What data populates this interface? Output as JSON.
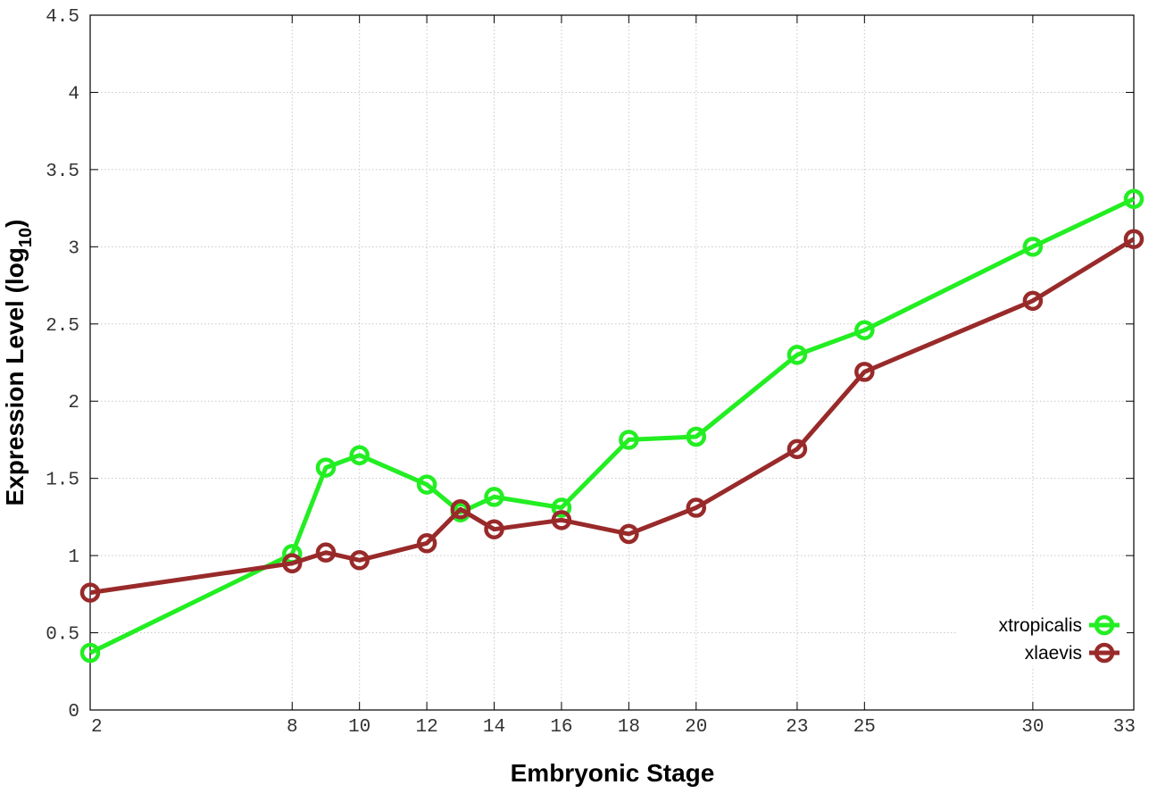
{
  "chart_data": {
    "type": "line",
    "title": "",
    "xlabel": "Embryonic Stage",
    "ylabel_main": "Expression Level (log",
    "ylabel_sub": "10",
    "ylabel_close": ")",
    "x_ticks": [
      2,
      8,
      10,
      12,
      14,
      16,
      18,
      20,
      23,
      25,
      30,
      33
    ],
    "y_ticks": [
      "0",
      "0.5",
      "1",
      "1.5",
      "2",
      "2.5",
      "3",
      "3.5",
      "4",
      "4.5"
    ],
    "xlim": [
      2,
      33
    ],
    "ylim": [
      0,
      4.5
    ],
    "grid": true,
    "legend_position": "bottom-right",
    "series": [
      {
        "name": "xtropicalis",
        "color": "#22ee22",
        "points": [
          [
            2,
            0.37
          ],
          [
            8,
            1.01
          ],
          [
            9,
            1.57
          ],
          [
            10,
            1.65
          ],
          [
            12,
            1.46
          ],
          [
            13,
            1.28
          ],
          [
            14,
            1.38
          ],
          [
            16,
            1.31
          ],
          [
            18,
            1.75
          ],
          [
            20,
            1.77
          ],
          [
            23,
            2.3
          ],
          [
            25,
            2.46
          ],
          [
            30,
            3.0
          ],
          [
            33,
            3.31
          ]
        ]
      },
      {
        "name": "xlaevis",
        "color": "#992a2a",
        "points": [
          [
            2,
            0.76
          ],
          [
            8,
            0.95
          ],
          [
            9,
            1.02
          ],
          [
            10,
            0.97
          ],
          [
            12,
            1.08
          ],
          [
            13,
            1.3
          ],
          [
            14,
            1.17
          ],
          [
            16,
            1.23
          ],
          [
            18,
            1.14
          ],
          [
            20,
            1.31
          ],
          [
            23,
            1.69
          ],
          [
            25,
            2.19
          ],
          [
            30,
            2.65
          ],
          [
            33,
            3.05
          ]
        ]
      }
    ]
  }
}
